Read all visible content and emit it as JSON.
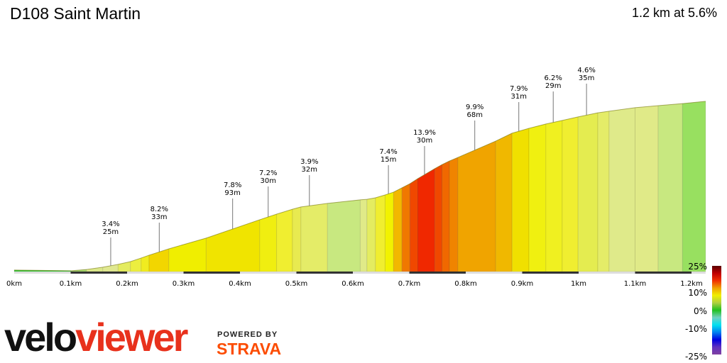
{
  "header": {
    "title": "D108 Saint Martin",
    "summary": "1.2 km at 5.6%"
  },
  "branding": {
    "logo_part1": "velo",
    "logo_part2": "viewer",
    "powered_by": "POWERED BY",
    "strava": "STRAVA"
  },
  "chart_data": {
    "type": "area",
    "xlabel": "",
    "ylabel": "",
    "x_ticks": [
      "0km",
      "0.1km",
      "0.2km",
      "0.3km",
      "0.4km",
      "0.5km",
      "0.6km",
      "0.7km",
      "0.8km",
      "0.9km",
      "1km",
      "1.1km",
      "1.2km"
    ],
    "xlim": [
      0,
      1.225
    ],
    "profile_km": [
      0,
      0.101,
      0.128,
      0.157,
      0.184,
      0.206,
      0.225,
      0.239,
      0.274,
      0.34,
      0.435,
      0.465,
      0.493,
      0.508,
      0.555,
      0.613,
      0.625,
      0.64,
      0.657,
      0.672,
      0.687,
      0.701,
      0.715,
      0.745,
      0.758,
      0.771,
      0.786,
      0.853,
      0.882,
      0.912,
      0.942,
      0.971,
      0.999,
      1.034,
      1.054,
      1.1,
      1.141,
      1.184,
      1.225
    ],
    "profile_elev_m": [
      0.6,
      0.3,
      0.8,
      1.7,
      2.8,
      3.9,
      5.3,
      6.4,
      8.9,
      13.1,
      20.3,
      22.5,
      24.4,
      25.3,
      26.7,
      28.1,
      28.3,
      28.9,
      30.0,
      31.1,
      32.8,
      34.4,
      36.4,
      40.3,
      41.9,
      43.3,
      44.7,
      51.1,
      54.2,
      56.1,
      57.8,
      59.2,
      60.6,
      62.2,
      62.8,
      64.2,
      65.0,
      65.8,
      66.7
    ],
    "segment_colors": [
      "#3cc83c",
      "#a8dc70",
      "#dce88a",
      "#e0e890",
      "#e4ec60",
      "#ecee40",
      "#f0ec20",
      "#f2d600",
      "#f0ee00",
      "#f0e400",
      "#f0ee10",
      "#f0ee30",
      "#e8ea50",
      "#e4ec68",
      "#c8e880",
      "#e0ea88",
      "#e4ec60",
      "#f0ee30",
      "#f2f200",
      "#f2b800",
      "#f07800",
      "#f04800",
      "#f02800",
      "#f04800",
      "#f06800",
      "#f08400",
      "#f0a400",
      "#f0b800",
      "#f0e000",
      "#f0f010",
      "#f0f020",
      "#f0ee30",
      "#e4ec50",
      "#e4ec68",
      "#dfea8a",
      "#e0ea88",
      "#c8e880",
      "#98e060"
    ],
    "annotations": [
      {
        "km": 0.171,
        "grade": "3.4%",
        "length": "25m"
      },
      {
        "km": 0.257,
        "grade": "8.2%",
        "length": "33m"
      },
      {
        "km": 0.387,
        "grade": "7.8%",
        "length": "93m"
      },
      {
        "km": 0.45,
        "grade": "7.2%",
        "length": "30m"
      },
      {
        "km": 0.523,
        "grade": "3.9%",
        "length": "32m"
      },
      {
        "km": 0.663,
        "grade": "7.4%",
        "length": "15m"
      },
      {
        "km": 0.727,
        "grade": "13.9%",
        "length": "30m"
      },
      {
        "km": 0.816,
        "grade": "9.9%",
        "length": "68m"
      },
      {
        "km": 0.894,
        "grade": "7.9%",
        "length": "31m"
      },
      {
        "km": 0.955,
        "grade": "6.2%",
        "length": "29m"
      },
      {
        "km": 1.014,
        "grade": "4.6%",
        "length": "35m"
      }
    ],
    "legend": {
      "labels": [
        "25%",
        "10%",
        "0%",
        "-10%",
        "-25%"
      ],
      "colors": [
        "#5a0000",
        "#c00000",
        "#f03000",
        "#f0a000",
        "#f0f000",
        "#b0d040",
        "#20c020",
        "#70d0c0",
        "#00e0f0",
        "#0080f0",
        "#0000e0",
        "#6030c0",
        "#8040a0"
      ]
    }
  }
}
